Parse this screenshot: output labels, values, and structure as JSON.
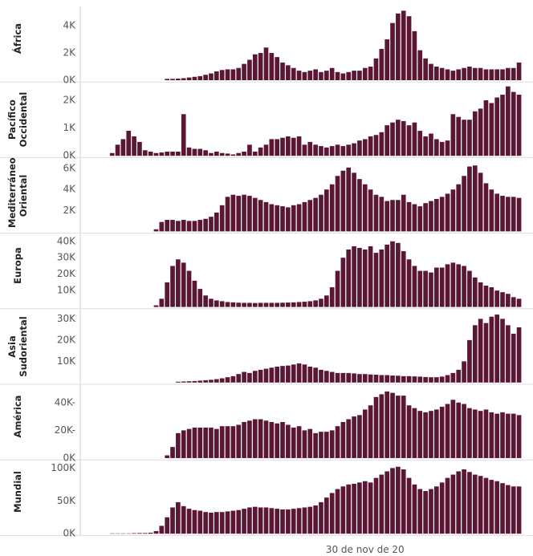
{
  "chart_data": {
    "type": "bar",
    "color": "#5a1632",
    "categories": [
      null,
      null,
      null,
      null,
      null,
      null,
      null,
      null,
      null,
      null,
      null,
      null,
      null,
      null,
      null,
      null,
      null,
      null,
      null,
      null,
      null,
      null,
      null,
      null,
      null,
      null,
      null,
      null,
      null,
      null,
      null,
      null,
      null,
      null,
      null,
      null,
      null,
      null,
      null,
      null,
      null,
      null,
      null,
      null,
      null,
      null,
      null,
      null,
      null,
      null,
      null,
      "30 de nov de 20",
      null,
      null,
      null,
      null,
      null,
      null,
      null,
      null,
      null,
      null,
      null,
      null,
      null,
      null,
      null,
      null,
      null,
      null,
      null,
      null,
      null,
      null,
      null,
      null,
      null,
      null,
      null,
      null
    ],
    "series": [
      {
        "name": "África",
        "ylim": [
          0,
          5300
        ],
        "yticks": [
          {
            "value": 0,
            "label": "0K"
          },
          {
            "value": 2000,
            "label": "2K"
          },
          {
            "value": 4000,
            "label": "4K"
          }
        ],
        "values": [
          null,
          null,
          null,
          null,
          null,
          null,
          null,
          null,
          null,
          null,
          null,
          null,
          null,
          null,
          null,
          100,
          100,
          120,
          150,
          200,
          250,
          300,
          400,
          500,
          650,
          750,
          800,
          800,
          900,
          1200,
          1500,
          1900,
          2000,
          2400,
          2000,
          1700,
          1300,
          1100,
          900,
          700,
          600,
          700,
          800,
          600,
          700,
          900,
          600,
          500,
          600,
          700,
          700,
          900,
          1000,
          1600,
          2300,
          3000,
          4200,
          4900,
          5100,
          4700,
          3600,
          2200,
          1600,
          1200,
          1000,
          900,
          800,
          700,
          800,
          900,
          1000,
          900,
          900,
          800,
          800,
          800,
          800,
          900,
          900,
          1300
        ]
      },
      {
        "name": "Pacífico Occidental",
        "ylim": [
          0,
          2600
        ],
        "yticks": [
          {
            "value": 0,
            "label": "0K"
          },
          {
            "value": 1000,
            "label": "1K"
          },
          {
            "value": 2000,
            "label": "2K"
          }
        ],
        "values": [
          null,
          null,
          null,
          null,
          null,
          100,
          400,
          600,
          900,
          700,
          500,
          200,
          150,
          100,
          120,
          150,
          150,
          150,
          1500,
          300,
          250,
          250,
          200,
          100,
          150,
          100,
          80,
          50,
          100,
          150,
          400,
          150,
          300,
          400,
          600,
          600,
          650,
          700,
          650,
          700,
          400,
          500,
          400,
          350,
          300,
          350,
          400,
          350,
          400,
          450,
          550,
          600,
          700,
          750,
          850,
          1100,
          1200,
          1300,
          1250,
          1100,
          1200,
          900,
          700,
          800,
          600,
          500,
          550,
          1500,
          1400,
          1300,
          1300,
          1600,
          1700,
          2000,
          1900,
          2100,
          2200,
          2500,
          2300,
          2200
        ]
      },
      {
        "name": "Mediterráneo Oriental",
        "ylim": [
          0,
          6900
        ],
        "yticks": [
          {
            "value": 2000,
            "label": "2K"
          },
          {
            "value": 4000,
            "label": "4K"
          },
          {
            "value": 6000,
            "label": "6K"
          }
        ],
        "values": [
          null,
          null,
          null,
          null,
          null,
          null,
          null,
          null,
          null,
          null,
          null,
          null,
          null,
          200,
          900,
          1100,
          1100,
          1000,
          1100,
          1000,
          1000,
          1100,
          1200,
          1400,
          1800,
          2500,
          3300,
          3500,
          3400,
          3500,
          3400,
          3200,
          3000,
          2800,
          2600,
          2500,
          2400,
          2300,
          2500,
          2600,
          2800,
          3000,
          3200,
          3500,
          4000,
          4500,
          5300,
          5800,
          6100,
          5600,
          5000,
          4500,
          4000,
          3500,
          3300,
          2900,
          3000,
          3000,
          3500,
          2800,
          2600,
          2400,
          2700,
          2900,
          3100,
          3300,
          3600,
          4000,
          4500,
          5300,
          6200,
          6300,
          5600,
          4600,
          4000,
          3600,
          3400,
          3300,
          3300,
          3200
        ]
      },
      {
        "name": "Europa",
        "ylim": [
          0,
          44000
        ],
        "yticks": [
          {
            "value": 10000,
            "label": "10K"
          },
          {
            "value": 20000,
            "label": "20K"
          },
          {
            "value": 30000,
            "label": "30K"
          },
          {
            "value": 40000,
            "label": "40K"
          }
        ],
        "values": [
          null,
          null,
          null,
          null,
          null,
          null,
          null,
          null,
          null,
          null,
          null,
          null,
          null,
          1000,
          5000,
          15000,
          25000,
          29000,
          27000,
          22000,
          16000,
          11000,
          7000,
          5000,
          4000,
          3500,
          3000,
          2800,
          2600,
          2500,
          2500,
          2400,
          2500,
          2500,
          2500,
          2500,
          2600,
          2700,
          2800,
          3000,
          3200,
          3500,
          4000,
          5000,
          7000,
          12000,
          22000,
          30000,
          35000,
          37000,
          36000,
          35000,
          37000,
          33000,
          35000,
          38000,
          40000,
          39000,
          34000,
          29000,
          25000,
          22000,
          22000,
          21000,
          24000,
          24000,
          26000,
          27000,
          26000,
          25000,
          22000,
          18000,
          15000,
          13000,
          12000,
          10000,
          9000,
          8000,
          6000,
          5000
        ]
      },
      {
        "name": "Asia Sudoriental",
        "ylim": [
          0,
          34000
        ],
        "yticks": [
          {
            "value": 10000,
            "label": "10K"
          },
          {
            "value": 20000,
            "label": "20K"
          },
          {
            "value": 30000,
            "label": "30K"
          }
        ],
        "values": [
          null,
          null,
          null,
          null,
          null,
          null,
          null,
          null,
          null,
          null,
          null,
          null,
          null,
          null,
          null,
          null,
          null,
          400,
          500,
          600,
          700,
          900,
          1100,
          1300,
          1600,
          2000,
          2500,
          3000,
          4000,
          5000,
          4500,
          5500,
          6000,
          6500,
          7000,
          7500,
          7800,
          8000,
          8500,
          9000,
          8500,
          7500,
          7000,
          6000,
          5500,
          5000,
          4500,
          4500,
          4500,
          4300,
          4000,
          4000,
          3800,
          3700,
          3500,
          3500,
          3300,
          3200,
          3000,
          3000,
          2900,
          2800,
          2600,
          2500,
          2500,
          2800,
          3500,
          4500,
          6000,
          10000,
          20000,
          27000,
          30000,
          28000,
          31000,
          32000,
          30000,
          27000,
          23000,
          26000
        ]
      },
      {
        "name": "América",
        "ylim": [
          0,
          52000
        ],
        "yticks": [
          {
            "value": 0,
            "label": "0K"
          },
          {
            "value": 20000,
            "label": "20K-"
          },
          {
            "value": 40000,
            "label": "40K-"
          }
        ],
        "values": [
          null,
          null,
          null,
          null,
          null,
          null,
          null,
          null,
          null,
          null,
          null,
          null,
          null,
          null,
          null,
          2000,
          8000,
          18000,
          20000,
          21000,
          22000,
          22000,
          22000,
          22000,
          21000,
          23000,
          23000,
          23000,
          24000,
          26000,
          27000,
          28000,
          28000,
          27000,
          26000,
          25000,
          26000,
          24000,
          22000,
          23000,
          20000,
          21000,
          18000,
          19000,
          19000,
          20000,
          23000,
          26000,
          28000,
          30000,
          31000,
          35000,
          38000,
          44000,
          46000,
          48000,
          47000,
          45000,
          45000,
          38000,
          36000,
          34000,
          33000,
          34000,
          35000,
          37000,
          39000,
          42000,
          40000,
          39000,
          36000,
          35000,
          34000,
          35000,
          33000,
          32000,
          33000,
          32000,
          32000,
          31000
        ]
      },
      {
        "name": "Mundial",
        "ylim": [
          0,
          110000
        ],
        "yticks": [
          {
            "value": 0,
            "label": "0K"
          },
          {
            "value": 50000,
            "label": "50K"
          },
          {
            "value": 100000,
            "label": "100K"
          }
        ],
        "values": [
          null,
          null,
          null,
          null,
          null,
          500,
          500,
          500,
          500,
          800,
          1000,
          1000,
          1500,
          4000,
          12000,
          25000,
          40000,
          48000,
          42000,
          38000,
          36000,
          35000,
          33000,
          32000,
          33000,
          33000,
          34000,
          35000,
          36000,
          38000,
          40000,
          41000,
          40000,
          40000,
          39000,
          38000,
          37000,
          37000,
          38000,
          39000,
          40000,
          41000,
          43000,
          48000,
          55000,
          62000,
          68000,
          72000,
          75000,
          76000,
          78000,
          80000,
          78000,
          85000,
          90000,
          95000,
          100000,
          102000,
          98000,
          85000,
          75000,
          68000,
          65000,
          68000,
          72000,
          78000,
          85000,
          90000,
          95000,
          98000,
          94000,
          90000,
          88000,
          85000,
          82000,
          80000,
          77000,
          74000,
          72000,
          72000
        ]
      }
    ]
  }
}
